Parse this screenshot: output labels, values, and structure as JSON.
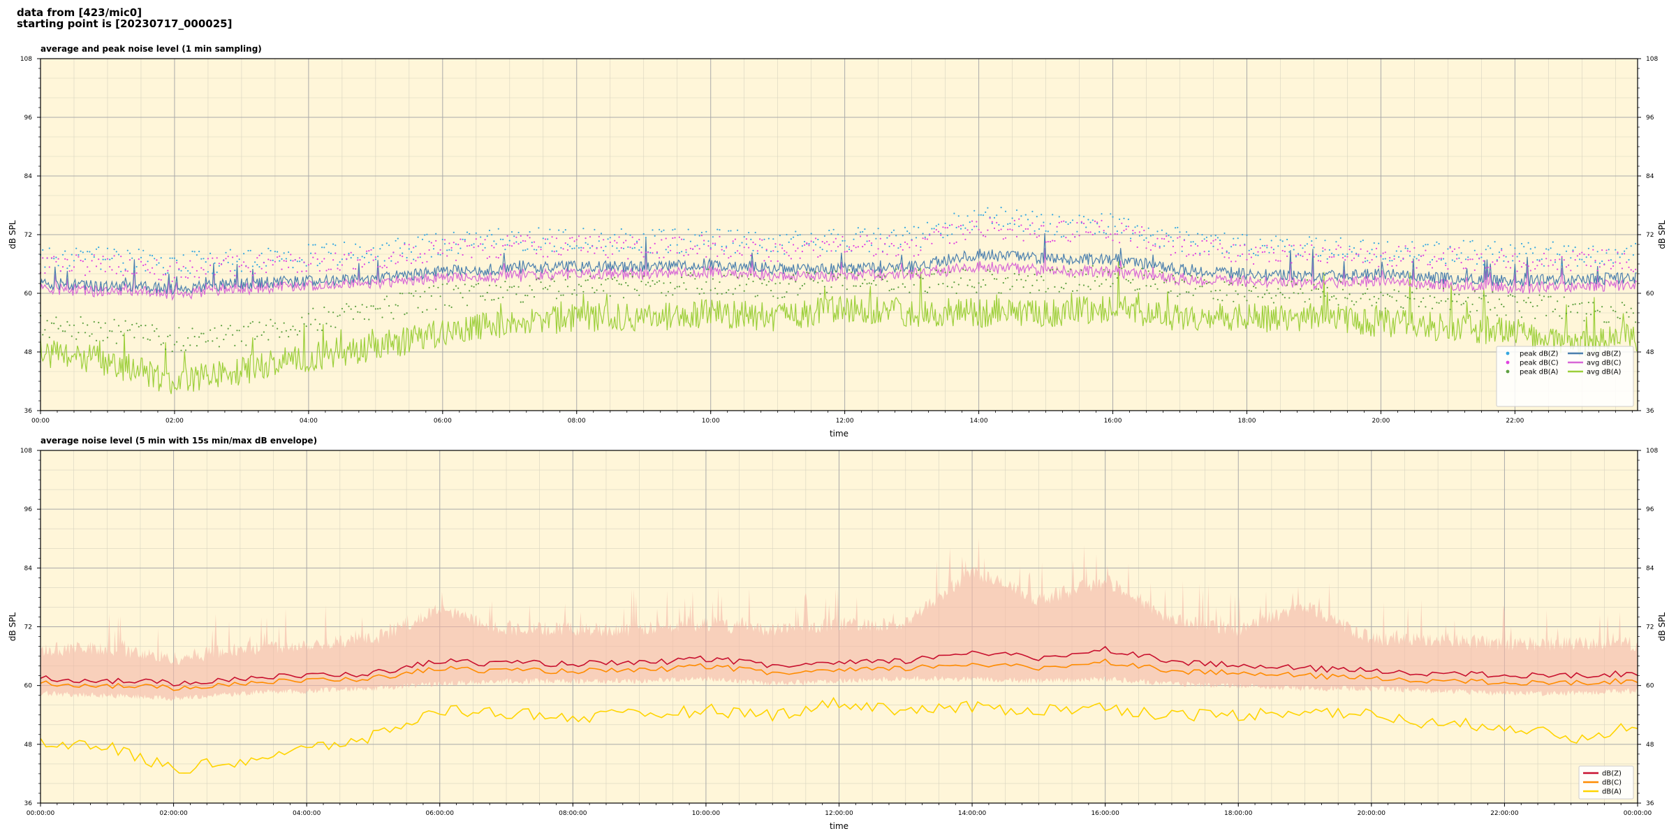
{
  "header": {
    "line1": "data from [423/mic0]",
    "line2": "starting point is [20230717_000025]"
  },
  "colors": {
    "background": "#fff6d9",
    "grid_major": "#a9a9a9",
    "grid_minor": "#d7d3bf",
    "avg_dBZ": "#4a7fae",
    "avg_dBC": "#d767d6",
    "avg_dBA": "#9ccf3a",
    "peak_dBZ": "#36a7e0",
    "peak_dBC": "#e042e0",
    "peak_dBA": "#5ea040",
    "dBZ_5min": "#c8102e",
    "dBC_5min": "#ff8c00",
    "dBA_5min": "#ffd400",
    "envelope": "#f4b8a6"
  },
  "chart_data": [
    {
      "type": "line",
      "title": "average and peak noise level (1 min sampling)",
      "xlabel": "time",
      "ylabel": "dB SPL",
      "ylim": [
        36,
        108
      ],
      "yticks": [
        "36",
        "48",
        "60",
        "72",
        "84",
        "96",
        "108"
      ],
      "x_range_hours": [
        0,
        23.83
      ],
      "xticks": [
        "00:00",
        "02:00",
        "04:00",
        "06:00",
        "08:00",
        "10:00",
        "12:00",
        "14:00",
        "16:00",
        "18:00",
        "20:00",
        "22:00"
      ],
      "grid": true,
      "legend_position": "bottom-right",
      "legend": [
        "peak dB(Z)",
        "peak dB(C)",
        "peak dB(A)",
        "avg dB(Z)",
        "avg dB(C)",
        "avg dB(A)"
      ],
      "x_hours": [
        0,
        1,
        2,
        3,
        4,
        5,
        6,
        7,
        8,
        9,
        10,
        11,
        12,
        13,
        14,
        15,
        16,
        17,
        18,
        19,
        20,
        21,
        22,
        23,
        23.8
      ],
      "series": [
        {
          "name": "avg dB(Z)",
          "values": [
            62,
            61.5,
            61,
            62,
            62.5,
            63,
            64.5,
            65,
            65.5,
            65.5,
            66,
            65,
            65,
            65.5,
            68,
            67,
            67,
            65,
            64,
            63.5,
            64,
            63,
            62.5,
            63,
            63
          ]
        },
        {
          "name": "avg dB(C)",
          "values": [
            61,
            60.5,
            60,
            61,
            61.5,
            62,
            63,
            63.5,
            64,
            64,
            64.5,
            63.5,
            63.5,
            64,
            65.5,
            64.5,
            64.5,
            63,
            62.5,
            62,
            62.5,
            61.5,
            61,
            61.5,
            61.5
          ]
        },
        {
          "name": "avg dB(A)",
          "values": [
            48,
            46,
            42,
            44,
            47,
            49,
            52,
            54,
            55,
            55,
            56,
            55,
            57,
            56,
            56,
            56,
            57,
            55,
            55,
            55,
            54,
            53,
            52,
            50,
            51
          ]
        },
        {
          "name": "peak dB(Z)",
          "values": [
            66,
            66,
            65,
            66,
            66.5,
            67.5,
            69,
            70,
            70,
            69.5,
            70,
            69,
            70,
            70,
            75,
            73,
            73,
            70,
            68.5,
            68,
            68,
            67.5,
            67,
            67,
            67
          ]
        },
        {
          "name": "peak dB(C)",
          "values": [
            65,
            65,
            64,
            65,
            65.5,
            66.5,
            68,
            69,
            69,
            68.5,
            69,
            68,
            69,
            69,
            73,
            72,
            72,
            69,
            67.5,
            67,
            67,
            66.5,
            66,
            66,
            66
          ]
        },
        {
          "name": "peak dB(A)",
          "values": [
            53,
            52,
            50,
            51,
            54,
            56,
            59,
            60,
            61,
            61,
            62,
            61,
            62,
            62,
            62,
            62,
            63,
            61,
            60,
            60,
            59,
            58,
            57,
            56,
            56
          ]
        }
      ]
    },
    {
      "type": "line",
      "title": "average noise level (5 min with 15s min/max dB envelope)",
      "xlabel": "time",
      "ylabel": "dB SPL",
      "ylim": [
        36,
        108
      ],
      "yticks": [
        "36",
        "48",
        "60",
        "72",
        "84",
        "96",
        "108"
      ],
      "x_range_hours": [
        0,
        24
      ],
      "xticks": [
        "00:00:00",
        "02:00:00",
        "04:00:00",
        "06:00:00",
        "08:00:00",
        "10:00:00",
        "12:00:00",
        "14:00:00",
        "16:00:00",
        "18:00:00",
        "20:00:00",
        "22:00:00",
        "00:00:00"
      ],
      "grid": true,
      "legend_position": "bottom-right",
      "legend": [
        "dB(Z)",
        "dB(C)",
        "dB(A)"
      ],
      "x_hours": [
        0,
        1,
        2,
        3,
        4,
        5,
        6,
        7,
        8,
        9,
        10,
        11,
        12,
        13,
        14,
        15,
        16,
        17,
        18,
        19,
        20,
        21,
        22,
        23,
        24
      ],
      "series": [
        {
          "name": "dB(Z)",
          "values": [
            61.5,
            61,
            60.5,
            61.5,
            62,
            62.5,
            65,
            64.5,
            64.5,
            64.5,
            65.5,
            64,
            64.5,
            65,
            67,
            65.5,
            67.5,
            65,
            64,
            63.5,
            63,
            62.5,
            62,
            62,
            62.5
          ]
        },
        {
          "name": "dB(C)",
          "values": [
            60.5,
            60,
            59.5,
            60.5,
            61,
            61.5,
            63.5,
            63,
            63,
            63,
            64,
            62.5,
            63,
            63.5,
            64.5,
            63.5,
            65,
            63,
            62.5,
            62,
            61.5,
            61,
            60.5,
            60.5,
            61
          ]
        },
        {
          "name": "dB(A)",
          "values": [
            48.5,
            47.5,
            43,
            44.5,
            47,
            49.5,
            55,
            54.5,
            53.5,
            54,
            55,
            54,
            56.5,
            55,
            55.5,
            55,
            55.5,
            54,
            54,
            55,
            54,
            52,
            52,
            49,
            52
          ]
        },
        {
          "name": "envelope max",
          "values": [
            66,
            66,
            64,
            66,
            67,
            68,
            74,
            70,
            70,
            70,
            71,
            70,
            71,
            71,
            82,
            76,
            80,
            72,
            70,
            75,
            68,
            68,
            67,
            67,
            67
          ]
        },
        {
          "name": "envelope min",
          "values": [
            59,
            58.5,
            58,
            59,
            59.5,
            60,
            61,
            61.5,
            61.5,
            61.5,
            62,
            61,
            61.5,
            62,
            62,
            61.5,
            62,
            61,
            60.5,
            60,
            60,
            59.5,
            59,
            59,
            59.5
          ]
        }
      ]
    }
  ]
}
